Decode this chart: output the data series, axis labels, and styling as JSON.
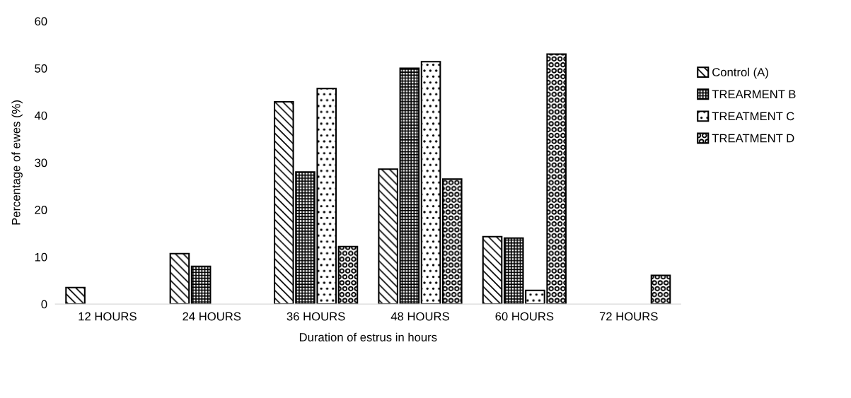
{
  "chart_data": {
    "type": "bar",
    "xlabel": "Duration of estrus in hours",
    "ylabel": "Percentage of ewes (%)",
    "categories": [
      "12 HOURS",
      "24 HOURS",
      "36 HOURS",
      "48 HOURS",
      "60 HOURS",
      "72 HOURS"
    ],
    "series": [
      {
        "name": "Control (A)",
        "color": "#000000",
        "values": [
          3.5,
          10.7,
          42.9,
          28.6,
          14.3,
          null
        ]
      },
      {
        "name": "TREARMENT B",
        "color": "#000000",
        "values": [
          null,
          8.0,
          28.0,
          50.0,
          14.0,
          null
        ]
      },
      {
        "name": "TREATMENT C",
        "color": "#000000",
        "values": [
          null,
          null,
          45.7,
          51.4,
          2.9,
          null
        ]
      },
      {
        "name": "TREATMENT D",
        "color": "#000000",
        "values": [
          null,
          null,
          12.2,
          26.5,
          53.0,
          6.1
        ]
      }
    ],
    "ylim": [
      0,
      60
    ],
    "yticks": [
      0,
      10,
      20,
      30,
      40,
      50,
      60
    ],
    "grid": false,
    "legend": "right"
  }
}
